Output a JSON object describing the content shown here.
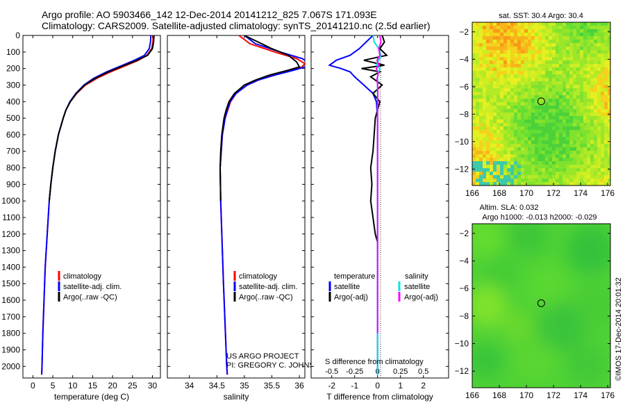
{
  "figure": {
    "title_line1": "Argo profile: AO 5903466_142 12-Dec-2014 20141212_825 7.067S 171.093E",
    "title_line2": "Climatology: CARS2009. Satellite-adjusted climatology: synTS_20141210.nc (2.5d earlier)",
    "credit_line1": "US ARGO PROJECT",
    "credit_line2": "PI: GREGORY C. JOHNSON",
    "imos_stamp": "©IMOS 17-Dec-2014 20:01:32"
  },
  "chart_data": [
    {
      "type": "line",
      "name": "temperature",
      "xlabel": "temperature (deg C)",
      "ylabel": "",
      "xlim": [
        -2.5,
        32
      ],
      "ylim": [
        2070,
        0
      ],
      "xticks": [
        0,
        5,
        10,
        15,
        20,
        25,
        30
      ],
      "yticks": [
        0,
        100,
        200,
        300,
        400,
        500,
        600,
        700,
        800,
        900,
        1000,
        1100,
        1200,
        1300,
        1400,
        1500,
        1600,
        1700,
        1800,
        1900,
        2000
      ],
      "legend": [
        "climatology",
        "satellite-adj. clim.",
        "Argo(..raw -QC)"
      ],
      "series": [
        {
          "name": "climatology",
          "color": "#ff0000",
          "depth": [
            0,
            40,
            80,
            120,
            150,
            180,
            220,
            260,
            300,
            350,
            400,
            450,
            500,
            600,
            700,
            800,
            900,
            1000,
            1200,
            1400,
            1600,
            1800,
            2000,
            2050
          ],
          "values": [
            30.2,
            30.1,
            29.8,
            28.6,
            26.5,
            23.5,
            19.5,
            16,
            13.2,
            11,
            9.4,
            8.3,
            7.6,
            6.4,
            5.6,
            5,
            4.5,
            4.1,
            3.6,
            3.1,
            2.8,
            2.5,
            2.3,
            2.2
          ]
        },
        {
          "name": "satellite-adj. clim.",
          "color": "#0000ff",
          "depth": [
            0,
            40,
            80,
            120,
            150,
            180,
            220,
            260,
            300,
            350,
            400,
            450,
            500,
            600,
            700,
            800,
            900,
            1000,
            1200,
            1400,
            1600,
            1800,
            2000,
            2050
          ],
          "values": [
            29.6,
            29.5,
            29.2,
            28,
            25.5,
            22.5,
            18.5,
            15.2,
            12.8,
            10.8,
            9.3,
            8.3,
            7.6,
            6.4,
            5.6,
            5,
            4.5,
            4.1,
            3.6,
            3.1,
            2.8,
            2.5,
            2.3,
            2.2
          ]
        },
        {
          "name": "Argo(..raw -QC)",
          "color": "#000000",
          "depth": [
            0,
            40,
            80,
            120,
            150,
            180,
            220,
            260,
            300,
            350,
            400,
            450,
            500,
            600,
            700,
            800,
            900,
            1000
          ],
          "values": [
            30.4,
            30.3,
            30,
            28.8,
            26.2,
            23,
            19,
            15.6,
            13,
            10.9,
            9.4,
            8.3,
            7.6,
            6.4,
            5.6,
            5,
            4.5,
            4.1
          ]
        }
      ]
    },
    {
      "type": "line",
      "name": "salinity",
      "xlabel": "salinity",
      "ylabel": "",
      "xlim": [
        33.6,
        36.1
      ],
      "ylim": [
        2070,
        0
      ],
      "xticks": [
        34,
        34.5,
        35,
        35.5,
        36
      ],
      "legend": [
        "climatology",
        "satellite-adj. clim.",
        "Argo(..raw -QC)"
      ],
      "series": [
        {
          "name": "climatology",
          "color": "#ff0000",
          "depth": [
            0,
            50,
            100,
            140,
            170,
            190,
            210,
            240,
            270,
            300,
            350,
            400,
            450,
            500,
            600,
            700,
            800,
            1000,
            1200,
            1500,
            2000,
            2050
          ],
          "values": [
            34.9,
            35.1,
            35.55,
            35.95,
            36.1,
            36.05,
            35.85,
            35.5,
            35.25,
            35.05,
            34.85,
            34.75,
            34.7,
            34.65,
            34.6,
            34.58,
            34.56,
            34.57,
            34.59,
            34.62,
            34.68,
            34.69
          ]
        },
        {
          "name": "satellite-adj. clim.",
          "color": "#0000ff",
          "depth": [
            0,
            50,
            100,
            140,
            170,
            190,
            210,
            240,
            270,
            300,
            350,
            400,
            450,
            500,
            600,
            700,
            800,
            1000,
            1200,
            1500,
            2000,
            2050
          ],
          "values": [
            35.0,
            35.2,
            35.65,
            36.05,
            36.2,
            36.1,
            35.9,
            35.55,
            35.25,
            35.05,
            34.85,
            34.74,
            34.69,
            34.65,
            34.6,
            34.58,
            34.56,
            34.57,
            34.59,
            34.62,
            34.68,
            34.69
          ]
        },
        {
          "name": "Argo(..raw -QC)",
          "color": "#000000",
          "depth": [
            0,
            40,
            80,
            120,
            160,
            190,
            210,
            240,
            270,
            300,
            350,
            400,
            450,
            500,
            600,
            700,
            800,
            1000
          ],
          "values": [
            35.0,
            35.25,
            35.5,
            35.8,
            35.95,
            36.0,
            35.8,
            35.45,
            35.2,
            35.0,
            34.82,
            34.72,
            34.67,
            34.63,
            34.59,
            34.57,
            34.56,
            34.57
          ]
        }
      ]
    },
    {
      "type": "line",
      "name": "difference",
      "xlabel": "T difference from climatology",
      "xlabel_top": "S difference from climatology",
      "xlim": [
        -2.9,
        3.1
      ],
      "ylim": [
        2070,
        0
      ],
      "xticks": [
        -2,
        -1,
        0,
        1,
        2
      ],
      "xticks_s": [
        -0.5,
        -0.25,
        0,
        0.25,
        0.5
      ],
      "legend_headers": [
        "temperature",
        "salinity"
      ],
      "legend": [
        "satellite",
        "Argo(-adj)",
        "satellite",
        "Argo(-adj)"
      ],
      "series": [
        {
          "name": "temperature satellite",
          "color": "#0000ff",
          "depth": [
            0,
            40,
            80,
            120,
            150,
            180,
            200,
            220,
            250,
            300,
            350,
            400,
            500,
            700,
            1000,
            1500,
            2050
          ],
          "values": [
            -0.2,
            -0.5,
            -0.8,
            -1.2,
            -1.8,
            -2.1,
            -1.6,
            -1.2,
            -1.0,
            -0.6,
            -0.2,
            -0.05,
            0,
            0,
            0,
            0,
            0
          ]
        },
        {
          "name": "temperature Argo(-adj)",
          "color": "#000000",
          "depth": [
            0,
            40,
            80,
            120,
            150,
            180,
            200,
            220,
            250,
            300,
            350,
            400,
            500,
            600,
            700,
            800,
            900,
            1000,
            1100,
            1200,
            1250
          ],
          "values": [
            0.2,
            0.3,
            0.1,
            0.4,
            -0.6,
            0.3,
            -0.7,
            0.1,
            -0.3,
            0.2,
            -0.2,
            0.1,
            -0.1,
            -0.15,
            -0.2,
            -0.3,
            -0.25,
            -0.3,
            -0.2,
            -0.1,
            0
          ]
        },
        {
          "name": "salinity satellite",
          "color": "#00e5e5",
          "depth": [
            0,
            40,
            80,
            120,
            150,
            180,
            200,
            230,
            260,
            300,
            350,
            400,
            500,
            700,
            1000,
            1500,
            2050
          ],
          "values": [
            -0.2,
            -0.15,
            0.05,
            0.15,
            0.05,
            -0.05,
            0.1,
            0.02,
            0,
            0,
            0,
            0,
            0,
            0,
            0,
            0,
            0
          ]
        },
        {
          "name": "salinity Argo(-adj)",
          "color": "#ff00ff",
          "depth": [
            0,
            40,
            80,
            120,
            150,
            180,
            200,
            230,
            260,
            300,
            350,
            400,
            500,
            700,
            1000,
            1500,
            1800
          ],
          "values": [
            0.1,
            0.15,
            0.05,
            0.1,
            -0.02,
            0.05,
            -0.05,
            0.03,
            -0.02,
            0,
            0.01,
            0,
            0,
            0,
            0,
            0,
            0
          ]
        }
      ]
    },
    {
      "type": "heatmap",
      "name": "sat-sst-map",
      "title": "sat. SST: 30.4  Argo: 30.4",
      "xlim": [
        166,
        176.2
      ],
      "ylim": [
        -13.2,
        -1.3
      ],
      "xticks": [
        166,
        168,
        170,
        172,
        174,
        176
      ],
      "yticks": [
        -2,
        -4,
        -6,
        -8,
        -10,
        -12
      ],
      "marker": {
        "lon": 171.093,
        "lat": -7.067
      }
    },
    {
      "type": "heatmap",
      "name": "altim-sla-map",
      "title_line1": "Altim. SLA: 0.032",
      "title_line2": "Argo h1000: -0.013 h2000: -0.029",
      "xlim": [
        166,
        176.2
      ],
      "ylim": [
        -13.2,
        -1.3
      ],
      "xticks": [
        166,
        168,
        170,
        172,
        174,
        176
      ],
      "yticks": [
        -2,
        -4,
        -6,
        -8,
        -10,
        -12
      ],
      "marker": {
        "lon": 171.093,
        "lat": -7.067
      }
    }
  ]
}
